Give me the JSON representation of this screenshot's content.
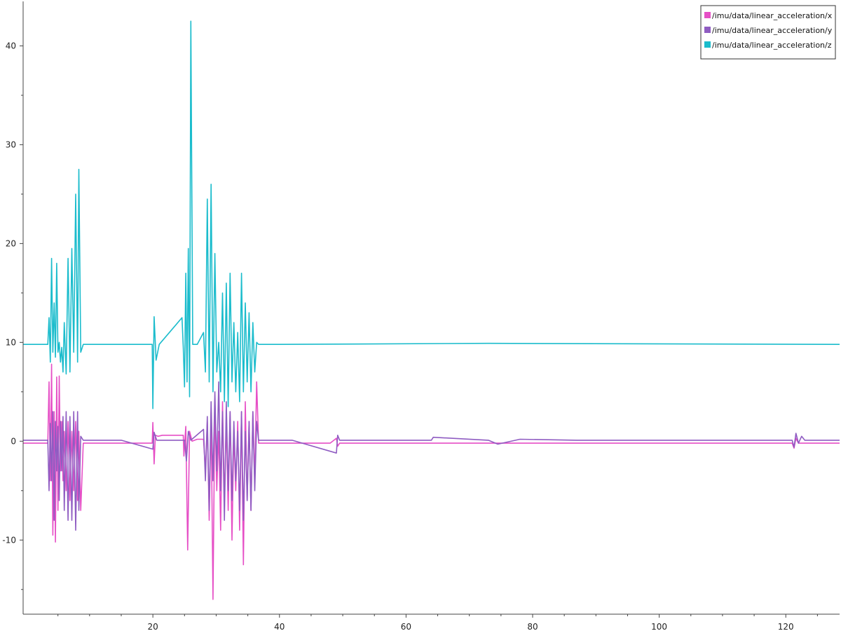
{
  "chart_data": {
    "type": "line",
    "title": "",
    "xlabel": "",
    "ylabel": "",
    "xlim": [
      -0.5,
      128.5
    ],
    "ylim": [
      -17.5,
      44.5
    ],
    "x_ticks": [
      20,
      40,
      60,
      80,
      100,
      120
    ],
    "y_ticks": [
      -10,
      0,
      10,
      20,
      30,
      40
    ],
    "grid": false,
    "legend": {
      "placement": "top-right",
      "entries": [
        {
          "label": "/imu/data/linear_acceleration/x",
          "color": "#e64fc6"
        },
        {
          "label": "/imu/data/linear_acceleration/y",
          "color": "#8f5cc2"
        },
        {
          "label": "/imu/data/linear_acceleration/z",
          "color": "#1bbccc"
        }
      ]
    },
    "series": [
      {
        "name": "/imu/data/linear_acceleration/x",
        "color": "#e64fc6",
        "x": [
          -0.5,
          3.4,
          3.6,
          3.8,
          4.0,
          4.2,
          4.4,
          4.6,
          4.8,
          5.0,
          5.2,
          5.4,
          5.6,
          5.8,
          6.0,
          6.3,
          6.6,
          6.9,
          7.2,
          7.5,
          7.8,
          8.1,
          8.3,
          8.6,
          9,
          15,
          19.9,
          20.0,
          20.2,
          20.4,
          20.8,
          21.5,
          23,
          24.8,
          24.9,
          25.2,
          25.5,
          25.8,
          26.2,
          27,
          28.0,
          28.3,
          28.6,
          28.9,
          29.2,
          29.5,
          29.8,
          30.1,
          30.4,
          30.7,
          31.0,
          31.3,
          31.6,
          31.9,
          32.2,
          32.5,
          32.8,
          33.1,
          33.4,
          33.7,
          34.0,
          34.3,
          34.6,
          34.9,
          35.2,
          35.5,
          35.8,
          36.1,
          36.4,
          36.7,
          37,
          48,
          49.0,
          49.2,
          49.5,
          50,
          121.0,
          121.3,
          121.6,
          122,
          123,
          128.5
        ],
        "y": [
          -0.2,
          -0.2,
          6,
          -4,
          7.8,
          -9.5,
          3,
          -10.2,
          6.5,
          -7,
          6.6,
          -3,
          2,
          -4,
          1,
          -5,
          2,
          -6,
          1,
          -5,
          2,
          -6,
          1,
          -7,
          -0.2,
          -0.2,
          -0.2,
          1.9,
          -2.3,
          0.6,
          0.5,
          0.6,
          0.6,
          0.6,
          -1.5,
          1.5,
          -11,
          1,
          0,
          0.2,
          0.2,
          -3,
          2,
          -8,
          3,
          -16,
          4,
          -5,
          1,
          -9,
          4,
          -6,
          2,
          -7,
          3,
          -10,
          1,
          -5,
          2,
          -9,
          3,
          -12.5,
          4,
          -6,
          2,
          -7,
          3,
          -4,
          6,
          -0.2,
          -0.2,
          -0.2,
          0.3,
          -0.5,
          -0.2,
          -0.2,
          -0.2,
          -0.7,
          0.3,
          -0.2,
          -0.2,
          -0.2
        ]
      },
      {
        "name": "/imu/data/linear_acceleration/y",
        "color": "#8f5cc2",
        "x": [
          -0.5,
          3.4,
          3.6,
          3.8,
          4.0,
          4.2,
          4.4,
          4.6,
          4.8,
          5.0,
          5.2,
          5.4,
          5.6,
          5.8,
          6.0,
          6.3,
          6.6,
          6.9,
          7.2,
          7.5,
          7.8,
          8.1,
          8.3,
          8.6,
          9,
          15,
          20.0,
          20.2,
          20.6,
          25.0,
          25.3,
          25.6,
          26.0,
          28.0,
          28.3,
          28.6,
          28.9,
          29.2,
          29.5,
          29.8,
          30.1,
          30.4,
          30.7,
          31.0,
          31.3,
          31.6,
          31.9,
          32.2,
          32.5,
          32.8,
          33.1,
          33.4,
          33.7,
          34.0,
          34.3,
          34.6,
          34.9,
          35.2,
          35.5,
          35.8,
          36.1,
          36.4,
          36.7,
          37,
          42,
          49.0,
          49.2,
          49.5,
          50,
          64,
          64.3,
          73,
          74.5,
          78,
          87,
          112,
          121.0,
          121.3,
          121.6,
          122,
          122.5,
          123,
          128.5
        ],
        "y": [
          0.1,
          0.1,
          -5,
          1.8,
          -4,
          3,
          -8,
          2,
          -3,
          1.5,
          -6,
          2,
          -3,
          2.5,
          -7,
          3,
          -8,
          2.5,
          -8,
          3,
          -9,
          3,
          -7,
          0.5,
          0.1,
          0.1,
          -0.8,
          0.9,
          0.1,
          0.1,
          -2,
          1,
          0.1,
          1.2,
          -4,
          2.5,
          -7,
          4,
          -4,
          5,
          -3,
          6,
          -5,
          3,
          -8,
          4,
          -5,
          3,
          -6,
          2,
          -4,
          1,
          -7,
          3,
          -8,
          1,
          -6,
          2,
          -7,
          3,
          -5,
          2,
          0.1,
          0.1,
          0.1,
          -1.2,
          0.6,
          0.1,
          0.1,
          0.1,
          0.4,
          0.1,
          -0.3,
          0.2,
          0.1,
          0.1,
          0.1,
          -0.6,
          0.8,
          -0.2,
          0.5,
          0.1,
          0.1
        ]
      },
      {
        "name": "/imu/data/linear_acceleration/z",
        "color": "#1bbccc",
        "x": [
          -0.5,
          3.4,
          3.6,
          3.8,
          4.0,
          4.2,
          4.4,
          4.6,
          4.8,
          5.0,
          5.2,
          5.4,
          5.6,
          5.8,
          6.0,
          6.3,
          6.6,
          6.9,
          7.2,
          7.5,
          7.8,
          8.1,
          8.3,
          8.6,
          9,
          15,
          19.9,
          20.0,
          20.2,
          20.5,
          21,
          24.6,
          24.8,
          25.0,
          25.2,
          25.4,
          25.6,
          25.8,
          26.0,
          26.3,
          27,
          28.0,
          28.3,
          28.6,
          28.9,
          29.2,
          29.5,
          29.8,
          30.1,
          30.4,
          30.7,
          31.0,
          31.3,
          31.6,
          31.9,
          32.2,
          32.5,
          32.8,
          33.1,
          33.4,
          33.7,
          34.0,
          34.3,
          34.6,
          34.9,
          35.2,
          35.5,
          35.8,
          36.1,
          36.4,
          36.7,
          37,
          40,
          73,
          128.5
        ],
        "y": [
          9.8,
          9.8,
          12.5,
          8,
          18.5,
          9,
          14,
          8.5,
          18,
          9,
          10,
          8,
          9.5,
          7,
          12,
          6.8,
          18.5,
          7,
          19.5,
          9,
          25,
          8,
          27.5,
          9,
          9.8,
          9.8,
          9.8,
          3.3,
          12.6,
          8.2,
          9.8,
          12.5,
          9.5,
          5.5,
          17,
          6,
          19.5,
          4.5,
          42.5,
          9.8,
          9.8,
          11,
          7,
          24.5,
          6,
          26,
          5,
          19,
          7,
          10,
          5,
          15,
          4,
          16,
          3.5,
          17,
          6,
          12,
          5,
          11,
          4,
          17,
          5,
          14,
          6,
          13,
          5,
          12,
          7,
          10,
          9.8,
          9.8,
          9.8,
          9.9,
          9.8
        ]
      }
    ]
  }
}
